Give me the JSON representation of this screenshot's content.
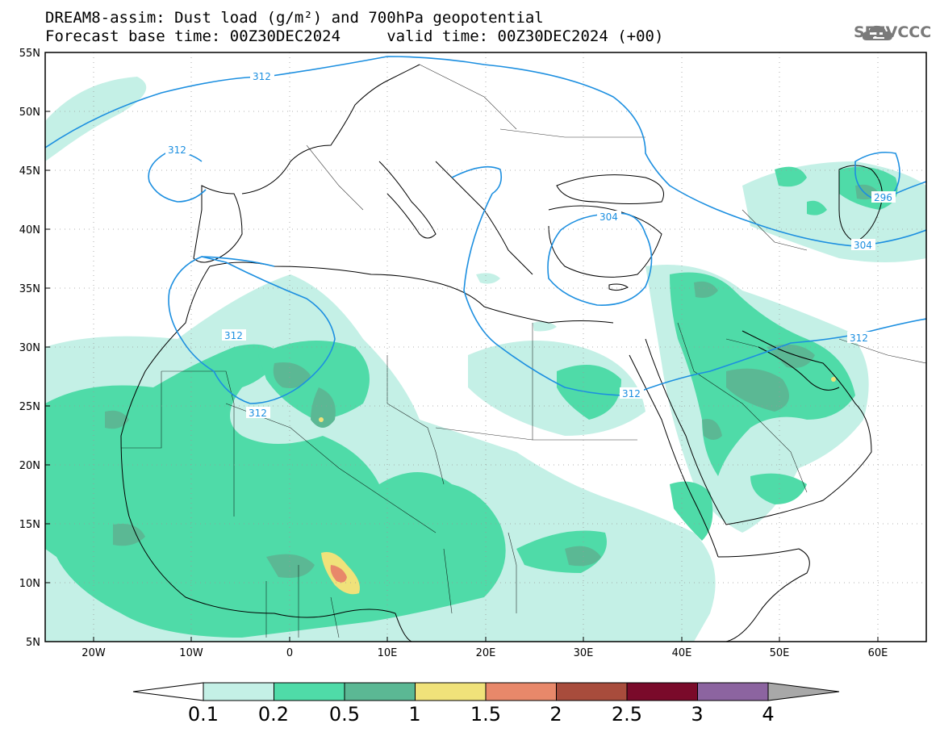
{
  "header": {
    "title_line1": "DREAM8-assim: Dust load (g/m²) and 700hPa geopotential",
    "title_line2": "Forecast base time: 00Z30DEC2024     valid time: 00Z30DEC2024 (+00)"
  },
  "logo": {
    "text": "SEEVCCC",
    "icon": "cloud-icon"
  },
  "map": {
    "lat_ticks": [
      "55N",
      "50N",
      "45N",
      "40N",
      "35N",
      "30N",
      "25N",
      "20N",
      "15N",
      "10N",
      "5N"
    ],
    "lon_ticks": [
      "20W",
      "10W",
      "0",
      "10E",
      "20E",
      "30E",
      "40E",
      "50E",
      "60E"
    ],
    "contour_labels": [
      "312",
      "312",
      "312",
      "312",
      "304",
      "312",
      "296",
      "304",
      "312"
    ],
    "contour_color": "#1c8fe0"
  },
  "colorbar": {
    "labels": [
      "0.1",
      "0.2",
      "0.5",
      "1",
      "1.5",
      "2",
      "2.5",
      "3",
      "4"
    ],
    "colors": [
      "#c4f0e6",
      "#4fdba8",
      "#5bb894",
      "#f0e27a",
      "#e8886a",
      "#a84c3c",
      "#7a0a2a",
      "#8c64a0"
    ],
    "under_color": "#ffffff",
    "over_color": "#a8a8a8"
  }
}
